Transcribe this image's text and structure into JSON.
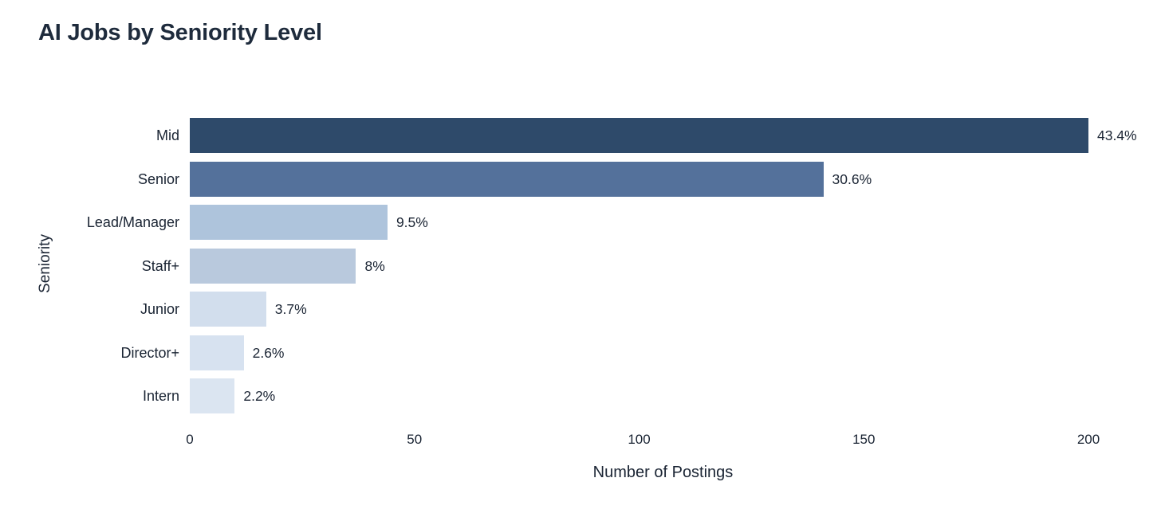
{
  "chart_data": {
    "type": "bar",
    "orientation": "horizontal",
    "title": "AI Jobs by Seniority Level",
    "xlabel": "Number of Postings",
    "ylabel": "Seniority",
    "categories": [
      "Mid",
      "Senior",
      "Lead/Manager",
      "Staff+",
      "Junior",
      "Director+",
      "Intern"
    ],
    "values": [
      200,
      141,
      44,
      37,
      17,
      12,
      10
    ],
    "value_labels": [
      "43.4%",
      "30.6%",
      "9.5%",
      "8%",
      "3.7%",
      "2.6%",
      "2.2%"
    ],
    "bar_colors": [
      "#2e4a6a",
      "#54719b",
      "#aec4dc",
      "#b9c9dd",
      "#d2deed",
      "#d7e2f0",
      "#dbe5f1"
    ],
    "xlim": [
      0,
      200
    ],
    "xticks": [
      0,
      50,
      100,
      150,
      200
    ],
    "grid": false,
    "legend": false,
    "background_color": "#ffffff",
    "title_color": "#1e2b3c",
    "text_color": "#1a2433"
  }
}
